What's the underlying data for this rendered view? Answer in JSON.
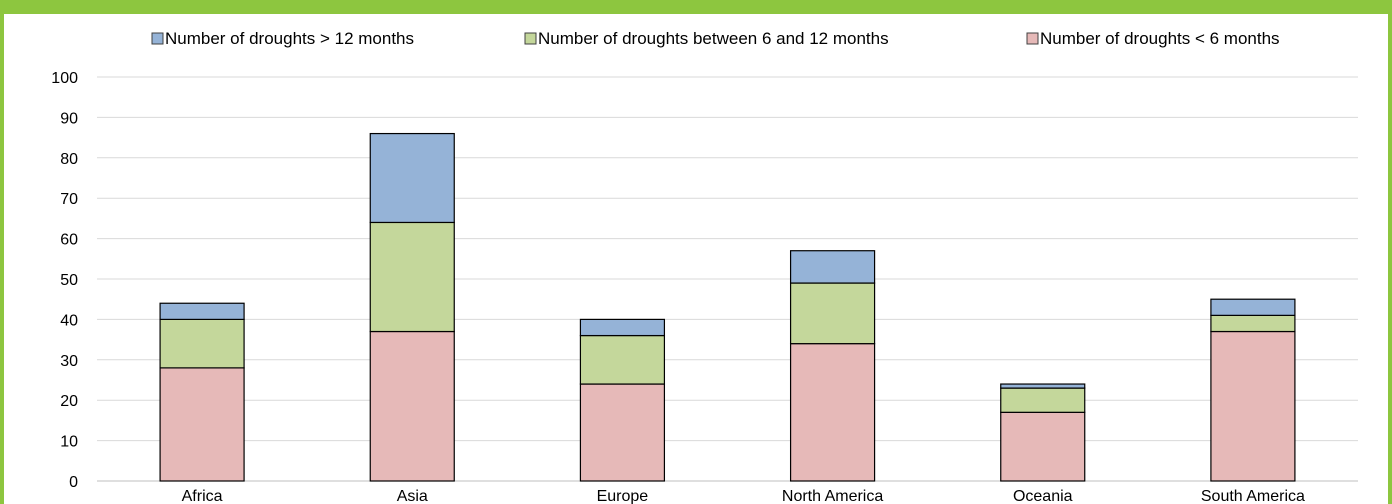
{
  "colors": {
    "frame_accent": "#8dc63f",
    "gridline": "#d9d9d9",
    "axis": "#bfbfbf",
    "bar_outline": "#000000"
  },
  "chart_data": {
    "type": "bar",
    "stacked": true,
    "title": "",
    "xlabel": "",
    "ylabel": "",
    "ylim": [
      0,
      100
    ],
    "y_ticks": [
      0,
      10,
      20,
      30,
      40,
      50,
      60,
      70,
      80,
      90,
      100
    ],
    "grid": true,
    "legend_position": "top",
    "categories": [
      "Africa",
      "Asia",
      "Europe",
      "North America",
      "Oceania",
      "South America"
    ],
    "series": [
      {
        "name": "Number of droughts < 6 months",
        "color": "#e6b9b8",
        "values": [
          28,
          37,
          24,
          34,
          17,
          37
        ]
      },
      {
        "name": "Number of droughts between 6 and 12 months",
        "color": "#c4d79b",
        "values": [
          12,
          27,
          12,
          15,
          6,
          4
        ]
      },
      {
        "name": "Number of droughts > 12 months",
        "color": "#95b3d7",
        "values": [
          4,
          22,
          4,
          8,
          1,
          4
        ]
      }
    ],
    "legend_order": [
      2,
      1,
      0
    ]
  }
}
